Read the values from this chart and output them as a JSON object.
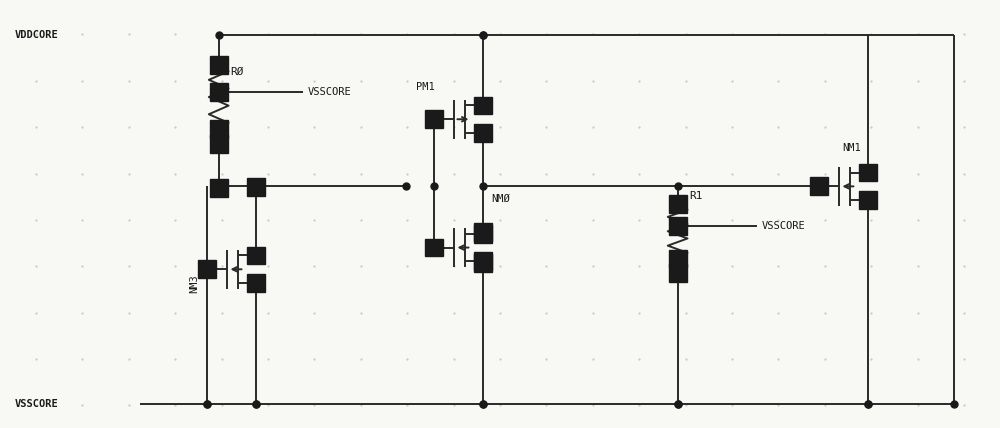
{
  "bg_color": "#f8f8f5",
  "line_color": "#2a2a2a",
  "dot_color": "#1a1a1a",
  "text_color": "#1a1a1a",
  "grid_dot_color": "#c8c8c8",
  "figsize": [
    10.0,
    4.28
  ],
  "dpi": 100,
  "labels": {
    "VDDCORE": "VDDCORE",
    "VSSCORE": "VSSCORE",
    "R0": "RØ",
    "R1": "R1",
    "NM3": "NM3",
    "NM0": "NMØ",
    "NM1": "NM1",
    "PM1": "PM1",
    "VSSCORE_R0": "VSSCORE",
    "VSSCORE_R1": "VSSCORE"
  },
  "xlim": [
    0,
    10
  ],
  "ylim": [
    0,
    4.28
  ]
}
